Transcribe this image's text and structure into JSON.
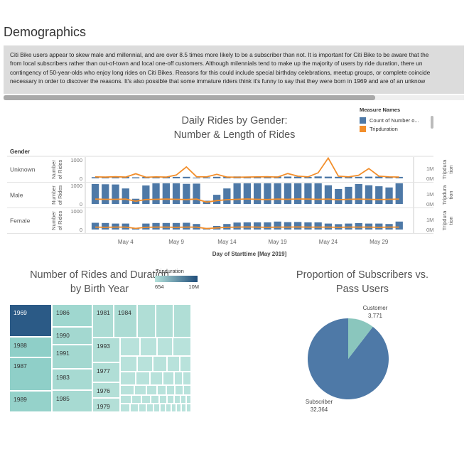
{
  "page": {
    "title": "Demographics",
    "description_lines": [
      "Citi Bike users appear to skew male and millennial, and are over 8.5 times more likely to be a subscriber than not. It is important for Citi Bike to be aware that the",
      "from local subscribers rather than out-of-town and local one-off customers. Although milennials tend to make up the majority of users by ride duration, there un",
      "contingency of 50-year-olds who enjoy long rides on Citi Bikes. Reasons for this could include special birthday celebrations, meetup groups, or complete coincide",
      "necessary in order to discover the reasons. It's also possible that some immature riders think it's funny to say that they were born in 1969 and are of an unknow"
    ]
  },
  "gender_chart": {
    "title_line1": "Daily Rides by Gender:",
    "title_line2": "Number & Length of Rides",
    "row_header": "Gender",
    "x_title": "Day of Starttime [May 2019]",
    "x_ticks": [
      "May 4",
      "May 9",
      "May 14",
      "May 19",
      "May 24",
      "May 29"
    ],
    "left_axis_title_lines": [
      "Number",
      "of Rides"
    ],
    "right_axis_title_lines": [
      "Tripdura",
      "tion"
    ],
    "legend": {
      "title": "Measure Names",
      "items": [
        {
          "label": "Count of Number o...",
          "color": "#4e79a7"
        },
        {
          "label": "Tripduration",
          "color": "#f28e2b"
        }
      ]
    }
  },
  "chart_data": [
    {
      "type": "bar",
      "title": "Daily Rides by Gender: Number & Length of Rides",
      "xlabel": "Day of Starttime [May 2019]",
      "x": [
        1,
        2,
        3,
        4,
        5,
        6,
        7,
        8,
        9,
        10,
        11,
        12,
        13,
        14,
        15,
        16,
        17,
        18,
        19,
        20,
        21,
        22,
        23,
        24,
        25,
        26,
        27,
        28,
        29,
        30,
        31
      ],
      "rows": [
        {
          "name": "Unknown",
          "ylim": [
            0,
            1000
          ],
          "y_ticks": [
            "1000",
            "0"
          ],
          "y2lim": [
            0,
            1000000
          ],
          "y2_ticks": [
            "1M",
            "0M"
          ],
          "count": [
            60,
            70,
            95,
            80,
            55,
            70,
            85,
            80,
            75,
            80,
            40,
            50,
            80,
            90,
            95,
            85,
            90,
            80,
            95,
            90,
            85,
            75,
            95,
            85,
            80,
            90,
            80,
            85,
            90,
            80,
            75
          ],
          "tripduration": [
            80000,
            70000,
            90000,
            70000,
            250000,
            60000,
            80000,
            70000,
            180000,
            620000,
            90000,
            80000,
            220000,
            70000,
            60000,
            70000,
            80000,
            90000,
            70000,
            260000,
            120000,
            80000,
            300000,
            1100000,
            120000,
            80000,
            170000,
            530000,
            120000,
            80000,
            70000
          ]
        },
        {
          "name": "Male",
          "ylim": [
            0,
            1000
          ],
          "y_ticks": [
            "1000",
            "0"
          ],
          "y2lim": [
            0,
            1000000
          ],
          "y2_ticks": [
            "1M",
            "0M"
          ],
          "count": [
            1000,
            990,
            980,
            780,
            260,
            930,
            1170,
            1120,
            1060,
            1010,
            1020,
            160,
            460,
            780,
            1130,
            1190,
            1140,
            1120,
            1170,
            1120,
            1140,
            1100,
            1100,
            940,
            750,
            860,
            1000,
            940,
            890,
            830,
            1120
          ],
          "tripduration": [
            260000,
            250000,
            250000,
            260000,
            150000,
            240000,
            250000,
            260000,
            250000,
            240000,
            260000,
            100000,
            180000,
            230000,
            250000,
            270000,
            250000,
            240000,
            260000,
            250000,
            270000,
            260000,
            250000,
            260000,
            230000,
            250000,
            260000,
            250000,
            240000,
            250000,
            260000
          ]
        },
        {
          "name": "Female",
          "ylim": [
            0,
            1000
          ],
          "y_ticks": [
            "1000",
            "0"
          ],
          "y2lim": [
            0,
            1000000
          ],
          "y2_ticks": [
            "1M",
            "0M"
          ],
          "count": [
            340,
            330,
            300,
            300,
            80,
            300,
            330,
            330,
            330,
            340,
            280,
            80,
            180,
            280,
            350,
            360,
            360,
            360,
            400,
            370,
            380,
            360,
            360,
            300,
            270,
            300,
            320,
            300,
            300,
            280,
            400
          ],
          "tripduration": [
            130000,
            120000,
            130000,
            130000,
            60000,
            120000,
            130000,
            130000,
            120000,
            130000,
            130000,
            50000,
            90000,
            120000,
            130000,
            140000,
            130000,
            120000,
            130000,
            130000,
            140000,
            130000,
            130000,
            130000,
            120000,
            130000,
            130000,
            130000,
            120000,
            130000,
            130000
          ]
        }
      ]
    },
    {
      "type": "treemap",
      "title": "Number of Rides and Duration by Birth Year",
      "color_legend": {
        "title": "Tripduration",
        "min_label": "654",
        "max_label": "10M"
      },
      "cells": [
        {
          "label": "1969",
          "color": "#2b5a86"
        },
        {
          "label": "1988",
          "color": "#8fcfc8"
        },
        {
          "label": "1987",
          "color": "#8fcfc8"
        },
        {
          "label": "1989",
          "color": "#95d2ca"
        },
        {
          "label": "1986",
          "color": "#9fd7cf"
        },
        {
          "label": "1990",
          "color": "#a3d8d0"
        },
        {
          "label": "1991",
          "color": "#a3d8d0"
        },
        {
          "label": "1983",
          "color": "#a7dad2"
        },
        {
          "label": "1985",
          "color": "#a7dad2"
        },
        {
          "label": "1981",
          "color": "#acdcd4"
        },
        {
          "label": "1984",
          "color": "#acdcd4"
        },
        {
          "label": "1993",
          "color": "#b0ded6"
        },
        {
          "label": "1977",
          "color": "#b0ded6"
        },
        {
          "label": "1976",
          "color": "#b3dfd7"
        },
        {
          "label": "1979",
          "color": "#b3dfd7"
        }
      ]
    },
    {
      "type": "pie",
      "title": "Proportion of Subscribers vs. Pass Users",
      "slices": [
        {
          "label": "Subscriber",
          "value": 32364,
          "value_label": "32,364",
          "color": "#4e79a7"
        },
        {
          "label": "Customer",
          "value": 3771,
          "value_label": "3,771",
          "color": "#8ac6bd"
        }
      ]
    }
  ]
}
